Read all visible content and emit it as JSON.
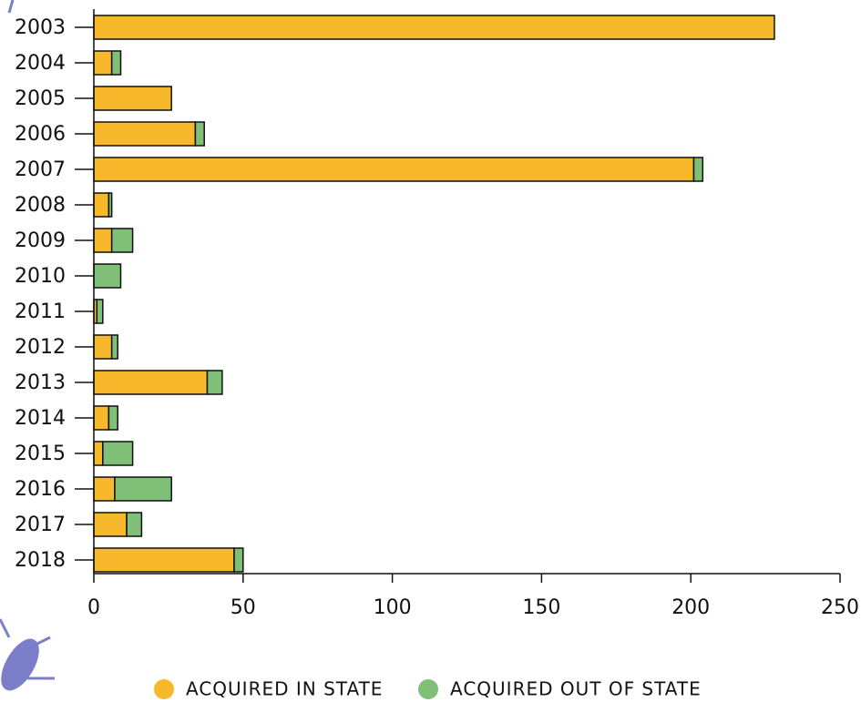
{
  "chart_data": {
    "type": "bar",
    "orientation": "horizontal",
    "stacked": true,
    "categories": [
      "2003",
      "2004",
      "2005",
      "2006",
      "2007",
      "2008",
      "2009",
      "2010",
      "2011",
      "2012",
      "2013",
      "2014",
      "2015",
      "2016",
      "2017",
      "2018"
    ],
    "series": [
      {
        "name": "Acquired in State",
        "color": "#f7b92b",
        "values": [
          228,
          6,
          26,
          34,
          201,
          5,
          6,
          0,
          1,
          6,
          38,
          5,
          3,
          7,
          11,
          47
        ]
      },
      {
        "name": "Acquired out of State",
        "color": "#7fbf78",
        "values": [
          0,
          3,
          0,
          3,
          3,
          1,
          7,
          9,
          2,
          2,
          5,
          3,
          10,
          19,
          5,
          3
        ]
      }
    ],
    "xlim": [
      0,
      250
    ],
    "xticks": [
      0,
      50,
      100,
      150,
      200,
      250
    ]
  }
}
